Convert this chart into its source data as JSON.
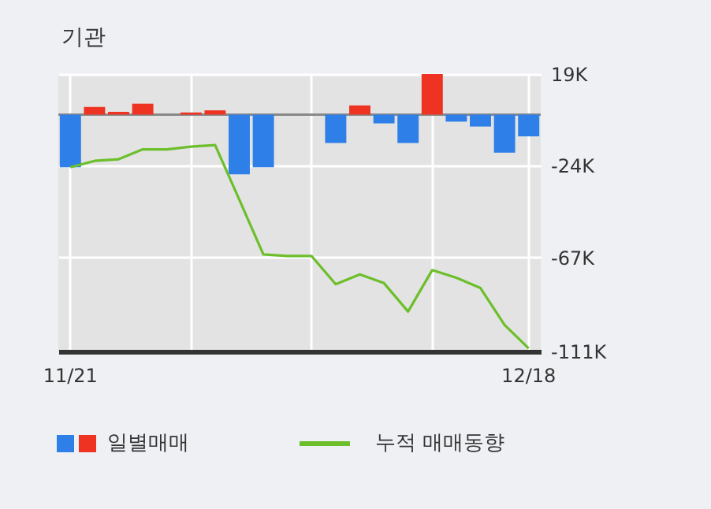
{
  "chart_data": {
    "type": "bar",
    "title": "기관",
    "categories": [
      "11/21",
      null,
      null,
      null,
      null,
      null,
      null,
      null,
      null,
      null,
      null,
      null,
      null,
      null,
      null,
      null,
      null,
      null,
      null,
      "12/18"
    ],
    "series": [
      {
        "name": "일별매매",
        "colors": [
          "#2f7fe8",
          "#ee3322",
          "#ee3322",
          "#ee3322",
          "#ee3322",
          "#ee3322",
          "#ee3322",
          "#2f7fe8",
          "#2f7fe8",
          "#ee3322",
          "#ee3322",
          "#2f7fe8",
          "#ee3322",
          "#2f7fe8",
          "#2f7fe8",
          "#ee3322",
          "#2f7fe8",
          "#2f7fe8",
          "#2f7fe8",
          "#2f7fe8"
        ],
        "values": [
          -24.7,
          3.6,
          1.3,
          5.1,
          0,
          1.0,
          2.0,
          -28,
          -24.7,
          0,
          0,
          -13.3,
          4.3,
          -4.1,
          -13.3,
          19,
          -3.3,
          -5.6,
          -17.8,
          -10.2
        ]
      },
      {
        "name": "누적 매매동향",
        "type": "line",
        "color": "#6cbf2a",
        "values": [
          -24.7,
          -21.7,
          -20.9,
          -16.3,
          -16.3,
          -15.0,
          -14.3,
          -39.8,
          -65.5,
          -66.3,
          -66.3,
          -79.5,
          -74.9,
          -79.0,
          -92.3,
          -72.9,
          -76.5,
          -81.3,
          -98.6,
          -109.6
        ]
      }
    ],
    "ylim": [
      -111,
      19
    ],
    "yticks": [
      {
        "value": 19,
        "label": "19K"
      },
      {
        "value": -24,
        "label": "-24K"
      },
      {
        "value": -67,
        "label": "-67K"
      },
      {
        "value": -111,
        "label": "-111K"
      }
    ],
    "grid": true,
    "legend": "bottom"
  }
}
